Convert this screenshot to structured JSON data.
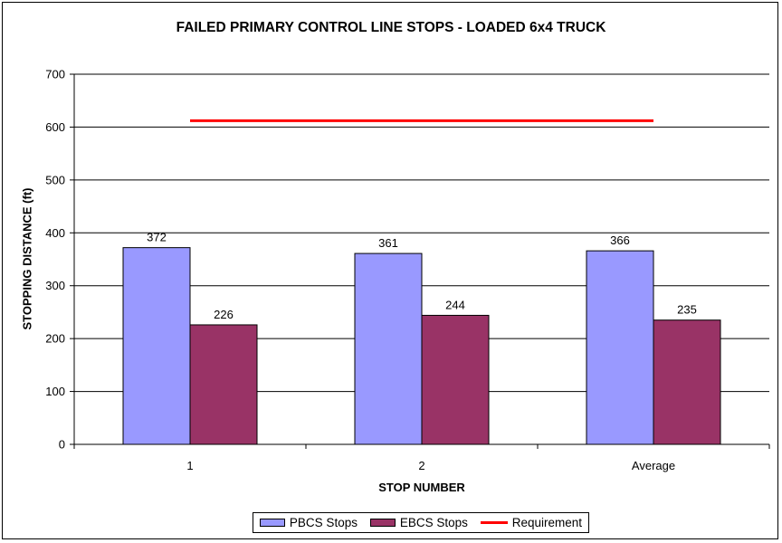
{
  "colors": {
    "pbcs": "#9999ff",
    "ebcs": "#993366",
    "requirement": "#ff0000"
  },
  "chart_data": {
    "type": "bar",
    "title": "FAILED PRIMARY CONTROL LINE STOPS - LOADED 6x4 TRUCK",
    "xlabel": "STOP NUMBER",
    "ylabel": "STOPPING DISTANCE (ft)",
    "ylim": [
      0,
      700
    ],
    "yticks": [
      "0",
      "100",
      "200",
      "300",
      "400",
      "500",
      "600",
      "700"
    ],
    "categories": [
      "1",
      "2",
      "Average"
    ],
    "series": [
      {
        "name": "PBCS Stops",
        "values": [
          372,
          361,
          366
        ]
      },
      {
        "name": "EBCS Stops",
        "values": [
          226,
          244,
          235
        ]
      }
    ],
    "requirement": {
      "name": "Requirement",
      "value": 612
    },
    "grid": true,
    "legend": "bottom"
  }
}
